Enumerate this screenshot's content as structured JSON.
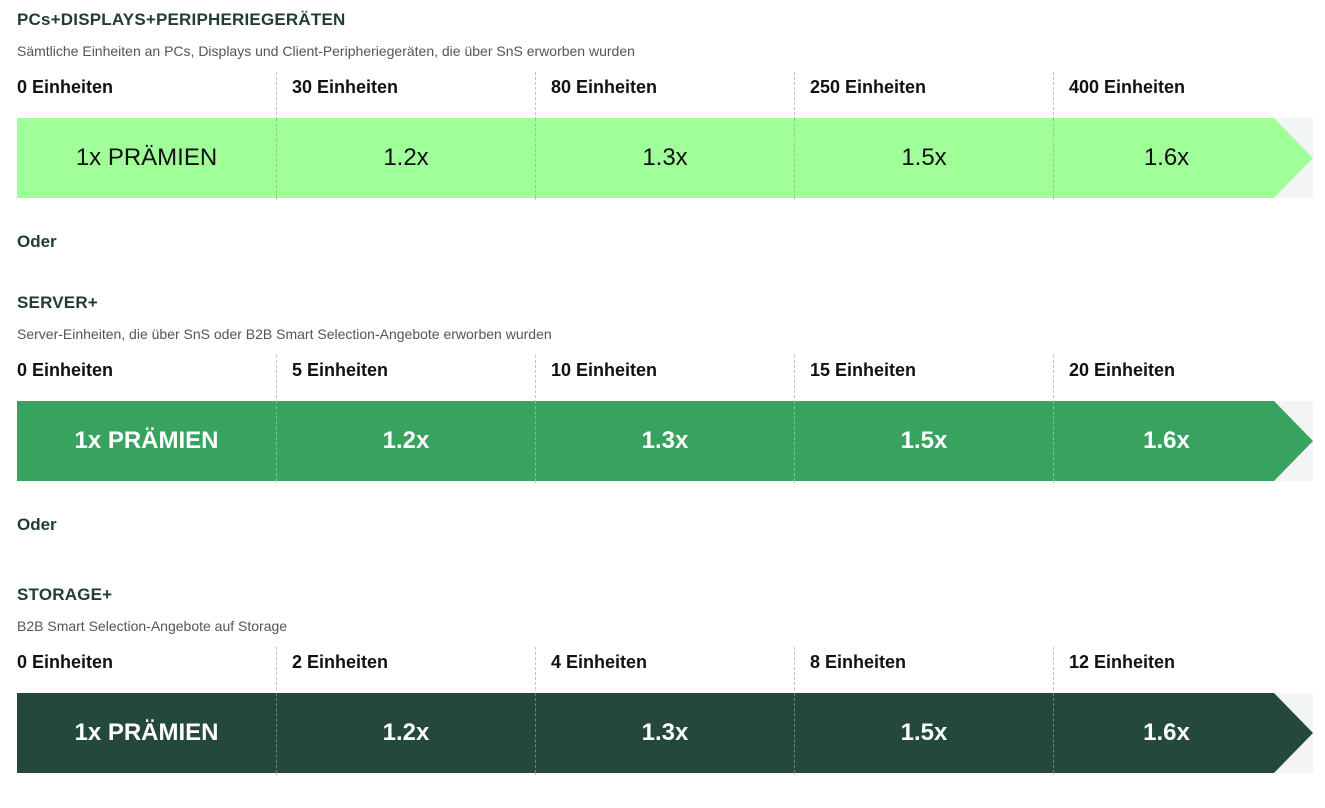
{
  "tiers": [
    {
      "title": "PCs+DISPLAYS+PERIPHERIEGERÄTEN",
      "subtitle": "Sämtliche Einheiten an PCs, Displays und Client-Peripheriegeräten, die über SnS erworben wurden",
      "thresholds": [
        "0 Einheiten",
        "30 Einheiten",
        "80 Einheiten",
        "250 Einheiten",
        "400 Einheiten"
      ],
      "multipliers": [
        "1x PRÄMIEN",
        "1.2x",
        "1.3x",
        "1.5x",
        "1.6x"
      ],
      "bar_color": "#a1ff9a",
      "text_color": "#111111"
    },
    {
      "title": "SERVER+",
      "subtitle": "Server-Einheiten, die über SnS oder B2B Smart Selection-Angebote erworben wurden",
      "thresholds": [
        "0 Einheiten",
        "5 Einheiten",
        "10 Einheiten",
        "15 Einheiten",
        "20 Einheiten"
      ],
      "multipliers": [
        "1x PRÄMIEN",
        "1.2x",
        "1.3x",
        "1.5x",
        "1.6x"
      ],
      "bar_color": "#38a35f",
      "text_color": "#ffffff"
    },
    {
      "title": "STORAGE+",
      "subtitle": "B2B Smart Selection-Angebote auf Storage",
      "thresholds": [
        "0 Einheiten",
        "2 Einheiten",
        "4 Einheiten",
        "8 Einheiten",
        "12 Einheiten"
      ],
      "multipliers": [
        "1x PRÄMIEN",
        "1.2x",
        "1.3x",
        "1.5x",
        "1.6x"
      ],
      "bar_color": "#24483a",
      "text_color": "#ffffff"
    }
  ],
  "separators": [
    "Oder",
    "Oder"
  ],
  "track_color": "#f3f4f6"
}
